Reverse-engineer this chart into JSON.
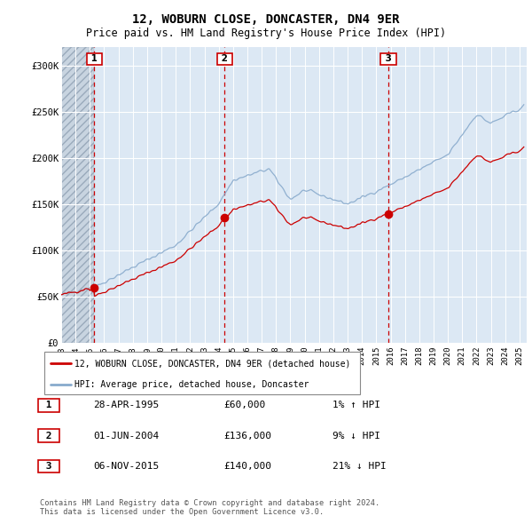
{
  "title": "12, WOBURN CLOSE, DONCASTER, DN4 9ER",
  "subtitle": "Price paid vs. HM Land Registry's House Price Index (HPI)",
  "footer1": "Contains HM Land Registry data © Crown copyright and database right 2024.",
  "footer2": "This data is licensed under the Open Government Licence v3.0.",
  "legend_label1": "12, WOBURN CLOSE, DONCASTER, DN4 9ER (detached house)",
  "legend_label2": "HPI: Average price, detached house, Doncaster",
  "transactions": [
    {
      "num": 1,
      "date": "28-APR-1995",
      "price": 60000,
      "pct": "1%",
      "dir": "↑"
    },
    {
      "num": 2,
      "date": "01-JUN-2004",
      "price": 136000,
      "pct": "9%",
      "dir": "↓"
    },
    {
      "num": 3,
      "date": "06-NOV-2015",
      "price": 140000,
      "pct": "21%",
      "dir": "↓"
    }
  ],
  "sale_dates": [
    1995.32,
    2004.42,
    2015.84
  ],
  "sale_prices": [
    60000,
    136000,
    140000
  ],
  "ylim": [
    0,
    320000
  ],
  "xlim": [
    1993.0,
    2025.5
  ],
  "yticks": [
    0,
    50000,
    100000,
    150000,
    200000,
    250000,
    300000
  ],
  "ytick_labels": [
    "£0",
    "£50K",
    "£100K",
    "£150K",
    "£200K",
    "£250K",
    "£300K"
  ],
  "xtick_years": [
    1993,
    1994,
    1995,
    1996,
    1997,
    1998,
    1999,
    2000,
    2001,
    2002,
    2003,
    2004,
    2005,
    2006,
    2007,
    2008,
    2009,
    2010,
    2011,
    2012,
    2013,
    2014,
    2015,
    2016,
    2017,
    2018,
    2019,
    2020,
    2021,
    2022,
    2023,
    2024,
    2025
  ],
  "plot_bg": "#dce8f4",
  "grid_color": "#ffffff",
  "red_color": "#cc0000",
  "blue_color": "#88aacc",
  "dashed_red": "#cc0000",
  "label_box_color": "#cc0000",
  "hatch_region_end": 1995.32
}
